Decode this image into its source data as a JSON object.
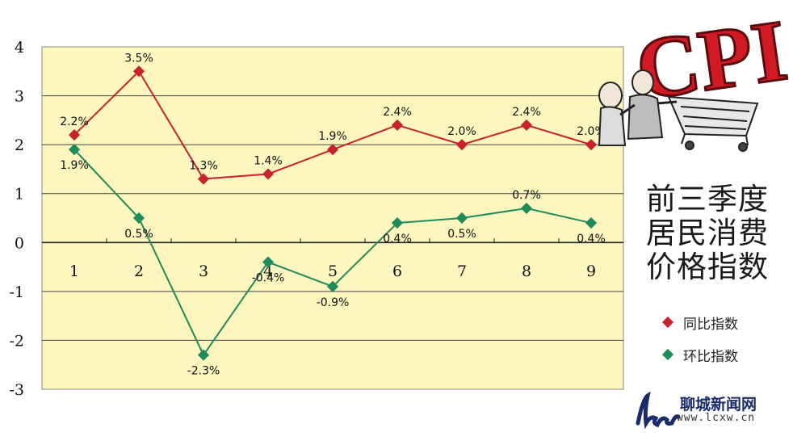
{
  "chart_data": {
    "type": "line",
    "categories": [
      "1",
      "2",
      "3",
      "4",
      "5",
      "6",
      "7",
      "8",
      "9"
    ],
    "series": [
      {
        "name": "同比指数",
        "color": "#c8232c",
        "values": [
          2.2,
          3.5,
          1.3,
          1.4,
          1.9,
          2.4,
          2.0,
          2.4,
          2.0
        ],
        "labels": [
          "2.2%",
          "3.5%",
          "1.3%",
          "1.4%",
          "1.9%",
          "2.4%",
          "2.0%",
          "2.4%",
          "2.0%"
        ]
      },
      {
        "name": "环比指数",
        "color": "#1f8a5a",
        "values": [
          1.9,
          0.5,
          -2.3,
          -0.4,
          -0.9,
          0.4,
          0.5,
          0.7,
          0.4
        ],
        "labels": [
          "1.9%",
          "0.5%",
          "-2.3%",
          "-0.4%",
          "-0.9%",
          "0.4%",
          "0.5%",
          "0.7%",
          "0.4%"
        ]
      }
    ],
    "ylim": [
      -3,
      4
    ],
    "yticks": [
      "4",
      "3",
      "2",
      "1",
      "0",
      "-1",
      "-2",
      "-3"
    ],
    "grid": true,
    "background": "#fdf6bf",
    "legend_placement": "right",
    "title_lines": [
      "前三季度",
      "居民消费",
      "价格指数"
    ]
  },
  "logo": {
    "text": "CPI",
    "color": "#d11a24"
  },
  "watermark": {
    "site_name": "聊城新闻网",
    "url": "www.lcxw.cn",
    "color": "#1a2a6a"
  }
}
